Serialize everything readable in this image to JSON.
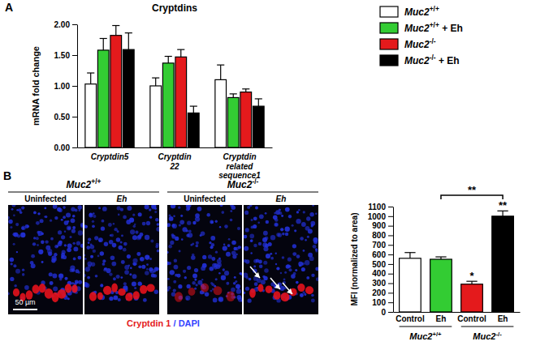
{
  "chart_data": [
    {
      "type": "bar",
      "panel_label": "A",
      "title": "Cryptdins",
      "y_label": "mRNA fold change",
      "categories": [
        "Cryptdin5",
        "Cryptdin 22",
        "Cryptdin related sequence1"
      ],
      "series": [
        {
          "name": "Muc2+/+",
          "color": "#ffffff",
          "values": [
            1.03,
            1.0,
            1.1
          ],
          "errors": [
            0.18,
            0.13,
            0.24
          ]
        },
        {
          "name": "Muc2+/+ + Eh",
          "color": "#33cc33",
          "values": [
            1.58,
            1.37,
            0.81
          ],
          "errors": [
            0.19,
            0.11,
            0.06
          ]
        },
        {
          "name": "Muc2-/-",
          "color": "#e41a1c",
          "values": [
            1.82,
            1.47,
            0.9
          ],
          "errors": [
            0.16,
            0.12,
            0.05
          ]
        },
        {
          "name": "Muc2-/- + Eh",
          "color": "#000000",
          "values": [
            1.59,
            0.56,
            0.67
          ],
          "errors": [
            0.27,
            0.11,
            0.12
          ]
        }
      ],
      "ylim": [
        0,
        2
      ],
      "yticks": [
        {
          "value": 0,
          "label": "0.00"
        },
        {
          "value": 0.5,
          "label": "0.50"
        },
        {
          "value": 1,
          "label": "1.00"
        },
        {
          "value": 1.5,
          "label": "1.50"
        },
        {
          "value": 2,
          "label": "2.00"
        }
      ],
      "legend": "right"
    },
    {
      "type": "bar",
      "y_label": "MFI (normalized to area)",
      "categories": [
        "Control",
        "Eh",
        "Control",
        "Eh"
      ],
      "values": [
        560,
        550,
        290,
        1000
      ],
      "errors": [
        60,
        25,
        30,
        55
      ],
      "colors": [
        "#ffffff",
        "#33cc33",
        "#e41a1c",
        "#000000"
      ],
      "groups": [
        {
          "label": "Muc2+/+",
          "from": 0,
          "to": 1
        },
        {
          "label": "Muc2-/-",
          "from": 2,
          "to": 3
        }
      ],
      "annotations": [
        {
          "label": "*",
          "at": 2
        },
        {
          "label": "**",
          "at": 3
        },
        {
          "label": "**",
          "from": 1,
          "to": 3
        }
      ],
      "ylim": [
        0,
        1100
      ],
      "yticks": [
        0,
        100,
        200,
        300,
        400,
        500,
        600,
        700,
        800,
        900,
        1000,
        1100
      ]
    }
  ],
  "micrographs": {
    "panel_label": "B",
    "groups": [
      {
        "label": "Muc2+/+",
        "panels": [
          "Uninfected",
          "Eh"
        ]
      },
      {
        "label": "Muc2-/-",
        "panels": [
          "Uninfected",
          "Eh"
        ]
      }
    ],
    "scale_bar": "50 µm",
    "stain": "Cryptdin 1 / DAPI",
    "stain_colors": [
      "#e41a1c",
      "#3344ff",
      "#3344ff"
    ]
  }
}
